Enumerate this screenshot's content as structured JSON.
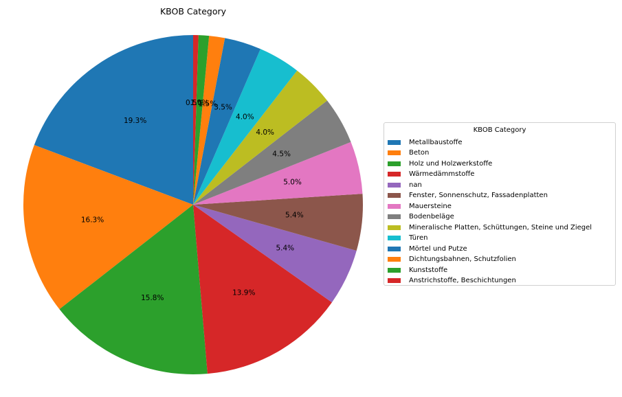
{
  "chart_data": {
    "type": "pie",
    "title": "KBOB Category",
    "legend_title": "KBOB Category",
    "legend_placement": "right",
    "start_angle_deg": 90,
    "direction": "clockwise",
    "slices": [
      {
        "label": "Metallbaustoffe",
        "value": 19.3,
        "pct_label": "19.3%",
        "color": "#1f77b4"
      },
      {
        "label": "Beton",
        "value": 16.3,
        "pct_label": "16.3%",
        "color": "#ff7f0e"
      },
      {
        "label": "Holz und Holzwerkstoffe",
        "value": 15.8,
        "pct_label": "15.8%",
        "color": "#2ca02c"
      },
      {
        "label": "Wärmedämmstoffe",
        "value": 13.9,
        "pct_label": "13.9%",
        "color": "#d62728"
      },
      {
        "label": "nan",
        "value": 5.4,
        "pct_label": "5.4%",
        "color": "#9467bd"
      },
      {
        "label": "Fenster, Sonnenschutz, Fassadenplatten",
        "value": 5.4,
        "pct_label": "5.4%",
        "color": "#8c564b"
      },
      {
        "label": "Mauersteine",
        "value": 5.0,
        "pct_label": "5.0%",
        "color": "#e377c2"
      },
      {
        "label": "Bodenbeläge",
        "value": 4.5,
        "pct_label": "4.5%",
        "color": "#7f7f7f"
      },
      {
        "label": "Mineralische Platten, Schüttungen, Steine und Ziegel",
        "value": 4.0,
        "pct_label": "4.0%",
        "color": "#bcbd22"
      },
      {
        "label": "Türen",
        "value": 4.0,
        "pct_label": "4.0%",
        "color": "#17becf"
      },
      {
        "label": "Mörtel und Putze",
        "value": 3.5,
        "pct_label": "3.5%",
        "color": "#1f77b4"
      },
      {
        "label": "Dichtungsbahnen, Schutzfolien",
        "value": 1.5,
        "pct_label": "1.5%",
        "color": "#ff7f0e"
      },
      {
        "label": "Kunststoffe",
        "value": 1.0,
        "pct_label": "1.0%",
        "color": "#2ca02c"
      },
      {
        "label": "Anstrichstoffe, Beschichtungen",
        "value": 0.5,
        "pct_label": "0.5%",
        "color": "#d62728"
      }
    ]
  }
}
